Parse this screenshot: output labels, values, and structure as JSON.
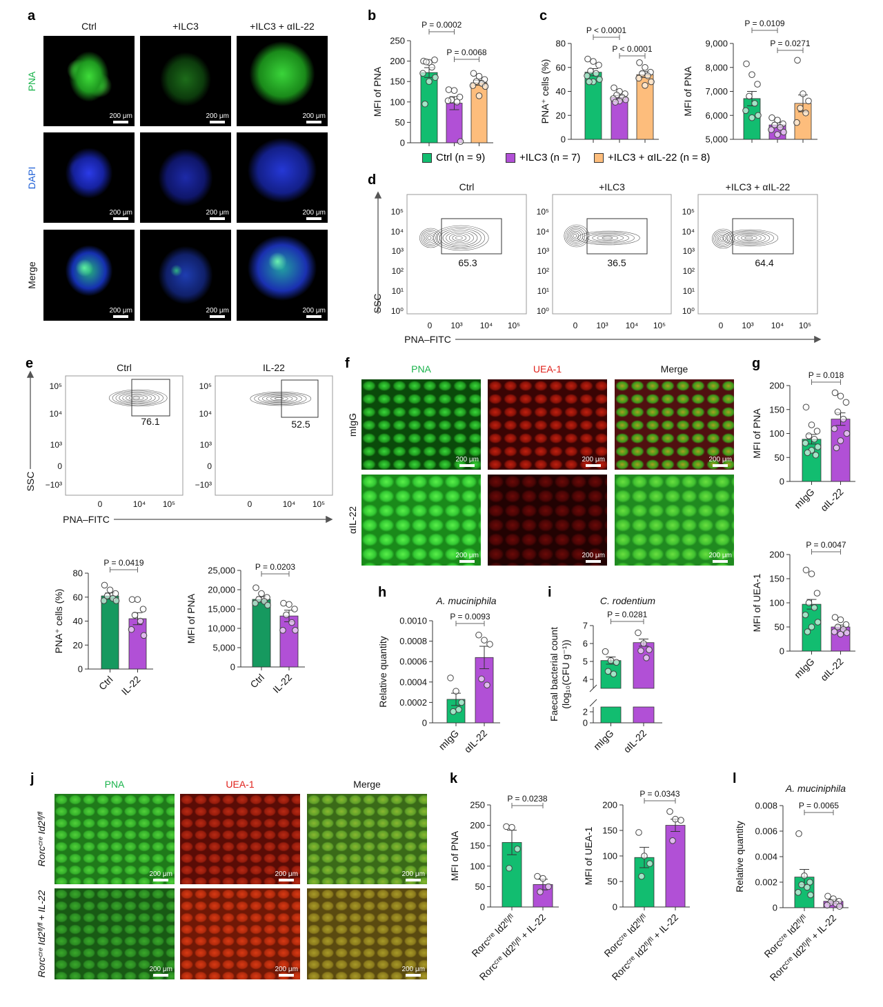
{
  "panel_letters": {
    "a": "a",
    "b": "b",
    "c": "c",
    "d": "d",
    "e": "e",
    "f": "f",
    "g": "g",
    "h": "h",
    "i": "i",
    "j": "j",
    "k": "k",
    "l": "l"
  },
  "scalebar_label": "200 μm",
  "colors": {
    "ctrl": "#12bd70",
    "ilc3": "#b150d6",
    "ailc": "#fdbd7c",
    "ctrl_dark": "#16995f",
    "pna": "#19b34b",
    "uea": "#e0201a",
    "dapi": "#1e5fd6"
  },
  "panel_a": {
    "columns": [
      "Ctrl",
      "+ILC3",
      "+ILC3 + αIL-22"
    ],
    "rows": [
      "PNA",
      "DAPI",
      "Merge"
    ]
  },
  "panel_f": {
    "columns": [
      "PNA",
      "UEA-1",
      "Merge"
    ],
    "rows": [
      "mIgG",
      "αIL-22"
    ]
  },
  "panel_j": {
    "columns": [
      "PNA",
      "UEA-1",
      "Merge"
    ],
    "rows": [
      "Rorcᶜʳᵉ Id2ᶠˡ/ᶠˡ",
      "Rorcᶜʳᵉ Id2ᶠˡ/ᶠˡ + IL-22"
    ]
  },
  "legend": [
    "Ctrl (n = 9)",
    "+ILC3 (n = 7)",
    "+ILC3 + αIL-22 (n = 8)"
  ],
  "flow_d": {
    "titles": [
      "Ctrl",
      "+ILC3",
      "+ILC3 + αIL-22"
    ],
    "gates": [
      "65.3",
      "36.5",
      "64.4"
    ],
    "ylabel": "SSC",
    "xlabel": "PNA–FITC",
    "yticks": [
      "10⁵",
      "10⁴",
      "10³",
      "10²",
      "10¹",
      "10⁰"
    ],
    "xticks": [
      "0",
      "10³",
      "10⁴",
      "10⁵"
    ]
  },
  "flow_e": {
    "titles": [
      "Ctrl",
      "IL-22"
    ],
    "gates": [
      "76.1",
      "52.5"
    ],
    "ylabel": "SSC",
    "xlabel": "PNA–FITC",
    "yticks": [
      "10⁵",
      "10⁴",
      "10³",
      "0",
      "−10³"
    ],
    "xticks": [
      "0",
      "10⁴",
      "10⁵"
    ]
  },
  "chart_data": [
    {
      "id": "b",
      "type": "bar",
      "ylabel": "MFI of PNA",
      "categories": [
        "Ctrl",
        "+ILC3",
        "+ILC3 + αIL-22"
      ],
      "show_categories": false,
      "values": [
        172,
        97,
        147
      ],
      "sem": [
        12,
        16,
        6
      ],
      "points": [
        [
          200,
          197,
          203,
          198,
          185,
          170,
          160,
          150,
          95
        ],
        [
          130,
          128,
          112,
          105,
          100,
          103,
          3
        ],
        [
          170,
          163,
          155,
          150,
          145,
          140,
          138,
          115
        ]
      ],
      "ylim": [
        0,
        250
      ],
      "yticks": [
        0,
        50,
        100,
        150,
        200,
        250
      ],
      "ytick_labels": [
        "0",
        "50",
        "100",
        "150",
        "200",
        "250"
      ],
      "comparisons": [
        {
          "groups": [
            0,
            1
          ],
          "p": "P = 0.0002"
        },
        {
          "groups": [
            1,
            2
          ],
          "p": "P = 0.0068"
        }
      ],
      "colors": [
        "#12bd70",
        "#b150d6",
        "#fdbd7c"
      ]
    },
    {
      "id": "c1",
      "type": "bar",
      "ylabel": "PNA⁺ cells (%)",
      "categories": [
        "Ctrl",
        "+ILC3",
        "+ILC3 + αIL-22"
      ],
      "show_categories": false,
      "values": [
        56,
        35,
        54
      ],
      "sem": [
        3,
        1.5,
        2.5
      ],
      "points": [
        [
          67,
          65,
          62,
          57,
          55,
          53,
          50,
          48,
          48
        ],
        [
          43,
          40,
          38,
          37,
          35,
          34,
          33,
          32,
          31
        ],
        [
          64,
          60,
          56,
          55,
          53,
          51,
          48,
          45
        ]
      ],
      "ylim": [
        0,
        80
      ],
      "yticks": [
        0,
        20,
        40,
        60,
        80
      ],
      "ytick_labels": [
        "0",
        "20",
        "40",
        "60",
        "80"
      ],
      "comparisons": [
        {
          "groups": [
            0,
            1
          ],
          "p": "P < 0.0001"
        },
        {
          "groups": [
            1,
            2
          ],
          "p": "P < 0.0001"
        }
      ],
      "colors": [
        "#12bd70",
        "#b150d6",
        "#fdbd7c"
      ]
    },
    {
      "id": "c2",
      "type": "bar",
      "ylabel": "MFI of PNA",
      "categories": [
        "Ctrl",
        "+ILC3",
        "+ILC3 + αIL-22"
      ],
      "show_categories": false,
      "values": [
        6700,
        5600,
        6500
      ],
      "sem": [
        300,
        100,
        350
      ],
      "points": [
        [
          8150,
          7700,
          7300,
          6800,
          6500,
          6200,
          6000,
          5900
        ],
        [
          5900,
          5800,
          5650,
          5600,
          5500,
          5400,
          5300,
          5200
        ],
        [
          8300,
          6900,
          6600,
          6300,
          6100,
          5700
        ]
      ],
      "ylim": [
        5000,
        9000
      ],
      "yticks": [
        5000,
        6000,
        7000,
        8000,
        9000
      ],
      "ytick_labels": [
        "5,000",
        "6,000",
        "7,000",
        "8,000",
        "9,000"
      ],
      "comparisons": [
        {
          "groups": [
            0,
            1
          ],
          "p": "P = 0.0109"
        },
        {
          "groups": [
            1,
            2
          ],
          "p": "P = 0.0271"
        }
      ],
      "colors": [
        "#12bd70",
        "#b150d6",
        "#fdbd7c"
      ]
    },
    {
      "id": "e1",
      "type": "bar",
      "ylabel": "PNA⁺ cells (%)",
      "categories": [
        "Ctrl",
        "IL-22"
      ],
      "show_categories": true,
      "values": [
        61,
        42
      ],
      "sem": [
        2.5,
        5
      ],
      "points": [
        [
          70,
          66,
          63,
          61,
          59,
          57,
          57
        ],
        [
          58,
          58,
          50,
          45,
          40,
          33,
          28
        ]
      ],
      "ylim": [
        0,
        80
      ],
      "yticks": [
        0,
        20,
        40,
        60,
        80
      ],
      "ytick_labels": [
        "0",
        "20",
        "40",
        "60",
        "80"
      ],
      "comparisons": [
        {
          "groups": [
            0,
            1
          ],
          "p": "P = 0.0419"
        }
      ],
      "colors": [
        "#16995f",
        "#b150d6"
      ]
    },
    {
      "id": "e2",
      "type": "bar",
      "ylabel": "MFI of PNA",
      "categories": [
        "Ctrl",
        "IL-22"
      ],
      "show_categories": true,
      "values": [
        17500,
        13200
      ],
      "sem": [
        700,
        1500
      ],
      "points": [
        [
          20500,
          19000,
          18000,
          17500,
          17000,
          16500,
          16000
        ],
        [
          16500,
          16200,
          15000,
          13500,
          11500,
          9500,
          9500
        ]
      ],
      "ylim": [
        0,
        25000
      ],
      "yticks": [
        0,
        5000,
        10000,
        15000,
        20000,
        25000
      ],
      "ytick_labels": [
        "0",
        "5,000",
        "10,000",
        "15,000",
        "20,000",
        "25,000"
      ],
      "comparisons": [
        {
          "groups": [
            0,
            1
          ],
          "p": "P = 0.0203"
        }
      ],
      "colors": [
        "#16995f",
        "#b150d6"
      ]
    },
    {
      "id": "g1",
      "type": "bar",
      "ylabel": "MFI of PNA",
      "categories": [
        "mIgG",
        "αIL-22"
      ],
      "show_categories": true,
      "values": [
        88,
        130
      ],
      "sem": [
        10,
        13
      ],
      "points": [
        [
          155,
          118,
          105,
          95,
          88,
          80,
          72,
          65,
          60,
          55
        ],
        [
          185,
          178,
          165,
          145,
          130,
          110,
          100,
          85,
          70
        ]
      ],
      "ylim": [
        0,
        200
      ],
      "yticks": [
        0,
        50,
        100,
        150,
        200
      ],
      "ytick_labels": [
        "0",
        "50",
        "100",
        "150",
        "200"
      ],
      "comparisons": [
        {
          "groups": [
            0,
            1
          ],
          "p": "P = 0.018"
        }
      ],
      "colors": [
        "#12bd70",
        "#b150d6"
      ]
    },
    {
      "id": "g2",
      "type": "bar",
      "ylabel": "MFI of UEA-1",
      "categories": [
        "mIgG",
        "αIL-22"
      ],
      "show_categories": true,
      "values": [
        97,
        50
      ],
      "sem": [
        10,
        4
      ],
      "points": [
        [
          168,
          160,
          120,
          100,
          90,
          75,
          60,
          50,
          40
        ],
        [
          70,
          65,
          55,
          50,
          45,
          40,
          38,
          35
        ]
      ],
      "ylim": [
        0,
        200
      ],
      "yticks": [
        0,
        50,
        100,
        150,
        200
      ],
      "ytick_labels": [
        "0",
        "50",
        "100",
        "150",
        "200"
      ],
      "comparisons": [
        {
          "groups": [
            0,
            1
          ],
          "p": "P = 0.0047"
        }
      ],
      "colors": [
        "#12bd70",
        "#b150d6"
      ]
    },
    {
      "id": "h",
      "type": "bar",
      "title": "A. muciniphila",
      "ylabel": "Relative quantity",
      "categories": [
        "mIgG",
        "αIL-22"
      ],
      "show_categories": true,
      "values": [
        0.00023,
        0.00064
      ],
      "sem": [
        6e-05,
        0.00011
      ],
      "points": [
        [
          0.00044,
          0.00031,
          0.0002,
          0.00011,
          0.00013
        ],
        [
          0.00086,
          0.00081,
          0.00077,
          0.00043,
          0.00037
        ]
      ],
      "ylim": [
        0,
        0.001
      ],
      "yticks": [
        0,
        0.0002,
        0.0004,
        0.0006,
        0.0008,
        0.001
      ],
      "ytick_labels": [
        "0",
        "0.0002",
        "0.0004",
        "0.0006",
        "0.0008",
        "0.0010"
      ],
      "comparisons": [
        {
          "groups": [
            0,
            1
          ],
          "p": "P = 0.0093"
        }
      ],
      "colors": [
        "#12bd70",
        "#b150d6"
      ]
    },
    {
      "id": "i",
      "type": "bar",
      "title": "C. rodentium",
      "ylabel": "Faecal bacterial count",
      "ylabel2": "(log₁₀(CFU g⁻¹))",
      "categories": [
        "mIgG",
        "αIL-22"
      ],
      "show_categories": true,
      "values": [
        5.05,
        6.05
      ],
      "sem": [
        0.2,
        0.2
      ],
      "points": [
        [
          5.55,
          5.05,
          4.95,
          4.45,
          4.3
        ],
        [
          6.6,
          6.0,
          5.65,
          5.6,
          5.2
        ]
      ],
      "ylim": [
        0,
        7
      ],
      "axis_break": true,
      "yticks": [
        0,
        2,
        4,
        5,
        6,
        7
      ],
      "ytick_labels": [
        "0",
        "2",
        "4",
        "5",
        "6",
        "7"
      ],
      "comparisons": [
        {
          "groups": [
            0,
            1
          ],
          "p": "P = 0.0281"
        }
      ],
      "colors": [
        "#12bd70",
        "#b150d6"
      ]
    },
    {
      "id": "k1",
      "type": "bar",
      "ylabel": "MFI of PNA",
      "categories": [
        "Rorcᶜʳᵉ Id2ᶠˡ/ᶠˡ",
        "Rorcᶜʳᵉ Id2ᶠˡ/ᶠˡ + IL-22"
      ],
      "show_categories": true,
      "values": [
        158,
        55
      ],
      "sem": [
        30,
        13
      ],
      "points": [
        [
          197,
          195,
          142,
          95
        ],
        [
          75,
          70,
          50,
          37
        ]
      ],
      "ylim": [
        0,
        250
      ],
      "yticks": [
        0,
        50,
        100,
        150,
        200,
        250
      ],
      "ytick_labels": [
        "0",
        "50",
        "100",
        "150",
        "200",
        "250"
      ],
      "comparisons": [
        {
          "groups": [
            0,
            1
          ],
          "p": "P = 0.0238"
        }
      ],
      "colors": [
        "#12bd70",
        "#b150d6"
      ]
    },
    {
      "id": "k2",
      "type": "bar",
      "ylabel": "MFI of UEA-1",
      "categories": [
        "Rorcᶜʳᵉ Id2ᶠˡ/ᶠˡ",
        "Rorcᶜʳᵉ Id2ᶠˡ/ᶠˡ + IL-22"
      ],
      "show_categories": true,
      "values": [
        97,
        160
      ],
      "sem": [
        20,
        12
      ],
      "points": [
        [
          146,
          100,
          85,
          60
        ],
        [
          187,
          172,
          170,
          130
        ]
      ],
      "ylim": [
        0,
        200
      ],
      "yticks": [
        0,
        50,
        100,
        150,
        200
      ],
      "ytick_labels": [
        "0",
        "50",
        "100",
        "150",
        "200"
      ],
      "comparisons": [
        {
          "groups": [
            0,
            1
          ],
          "p": "P = 0.0343"
        }
      ],
      "colors": [
        "#12bd70",
        "#b150d6"
      ]
    },
    {
      "id": "l",
      "type": "bar",
      "title": "A. muciniphila",
      "ylabel": "Relative quantity",
      "categories": [
        "Rorcᶜʳᵉ Id2ᶠˡ/ᶠˡ",
        "Rorcᶜʳᵉ Id2ᶠˡ/ᶠˡ + IL-22"
      ],
      "show_categories": true,
      "values": [
        0.0024,
        0.0005
      ],
      "sem": [
        0.0006,
        0.00015
      ],
      "points": [
        [
          0.0058,
          0.0025,
          0.002,
          0.0018,
          0.0016,
          0.0012,
          0.001
        ],
        [
          0.0009,
          0.0007,
          0.0005,
          0.0004,
          0.0003,
          0.0002,
          0.0001
        ]
      ],
      "ylim": [
        0,
        0.008
      ],
      "yticks": [
        0,
        0.002,
        0.004,
        0.006,
        0.008
      ],
      "ytick_labels": [
        "0",
        "0.002",
        "0.004",
        "0.006",
        "0.008"
      ],
      "comparisons": [
        {
          "groups": [
            0,
            1
          ],
          "p": "P = 0.0065"
        }
      ],
      "colors": [
        "#12bd70",
        "#b150d6"
      ]
    }
  ]
}
